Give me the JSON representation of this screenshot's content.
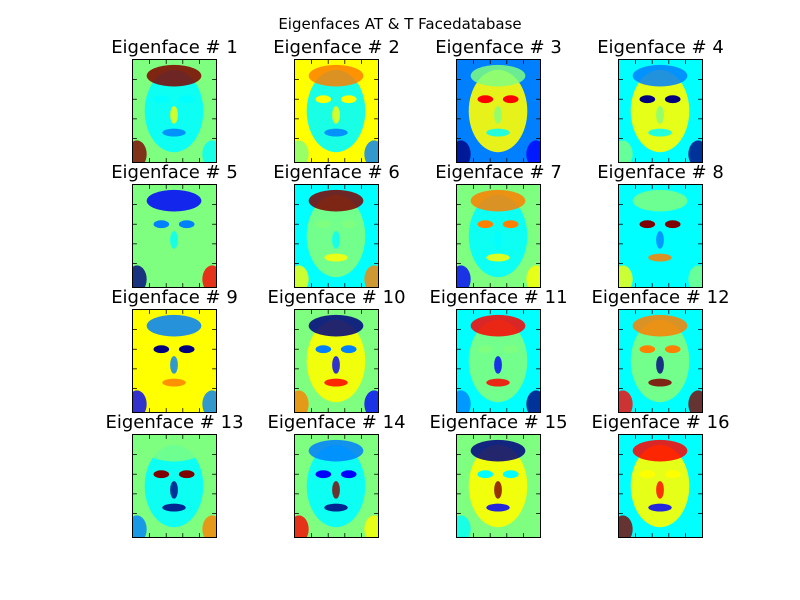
{
  "suptitle": "Eigenfaces AT & T Facedatabase",
  "eigenfaces": [
    {
      "label": "Eigenface  # 1"
    },
    {
      "label": "Eigenface  # 2"
    },
    {
      "label": "Eigenface  # 3"
    },
    {
      "label": "Eigenface  # 4"
    },
    {
      "label": "Eigenface  # 5"
    },
    {
      "label": "Eigenface  # 6"
    },
    {
      "label": "Eigenface  # 7"
    },
    {
      "label": "Eigenface  # 8"
    },
    {
      "label": "Eigenface  # 9"
    },
    {
      "label": "Eigenface  # 10"
    },
    {
      "label": "Eigenface  # 11"
    },
    {
      "label": "Eigenface  # 12"
    },
    {
      "label": "Eigenface  # 13"
    },
    {
      "label": "Eigenface  # 14"
    },
    {
      "label": "Eigenface  # 15"
    },
    {
      "label": "Eigenface  # 16"
    }
  ],
  "colormap": [
    "#00007f",
    "#0000ff",
    "#007fff",
    "#00ffff",
    "#7fff7f",
    "#ffff00",
    "#ff7f00",
    "#ff0000",
    "#7f0000"
  ]
}
